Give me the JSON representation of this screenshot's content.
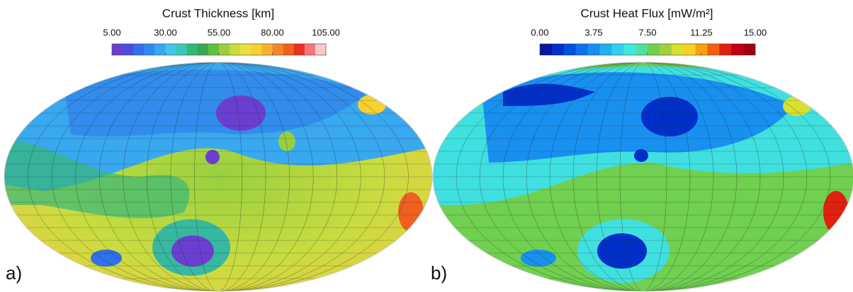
{
  "panels": [
    {
      "label": "a)",
      "colorbar": {
        "title": "Crust Thickness [km]",
        "range": [
          5,
          105
        ],
        "ticks": [
          {
            "value": 5,
            "label": "5.00"
          },
          {
            "value": 30,
            "label": "30.00"
          },
          {
            "value": 55,
            "label": "55.00"
          },
          {
            "value": 80,
            "label": "80.00"
          },
          {
            "value": 105,
            "label": "105.00"
          }
        ],
        "colors": [
          "#6a3fd0",
          "#4a4ee0",
          "#3070e8",
          "#2f8af0",
          "#38a8f0",
          "#40c8e8",
          "#38c8b8",
          "#30b878",
          "#38a850",
          "#60c040",
          "#98d040",
          "#c8dc40",
          "#e8e040",
          "#f8d030",
          "#f8b030",
          "#f08828",
          "#f06020",
          "#e83020",
          "#f07878",
          "#f8c8c8"
        ]
      }
    },
    {
      "label": "b)",
      "colorbar": {
        "title": "Crust Heat Flux [mW/m²]",
        "range": [
          0,
          15
        ],
        "ticks": [
          {
            "value": 0,
            "label": "0.00"
          },
          {
            "value": 3.75,
            "label": "3.75"
          },
          {
            "value": 7.5,
            "label": "7.50"
          },
          {
            "value": 11.25,
            "label": "11.25"
          },
          {
            "value": 15,
            "label": "15.00"
          }
        ],
        "colors": [
          "#0818a0",
          "#0030c8",
          "#0050e0",
          "#1070f0",
          "#1890f0",
          "#20b0f0",
          "#30d0f0",
          "#40e8e0",
          "#50e0a0",
          "#70d050",
          "#a0d040",
          "#d8e030",
          "#f8d020",
          "#f8a010",
          "#f06010",
          "#e02010",
          "#c00010",
          "#a00010"
        ]
      }
    }
  ]
}
